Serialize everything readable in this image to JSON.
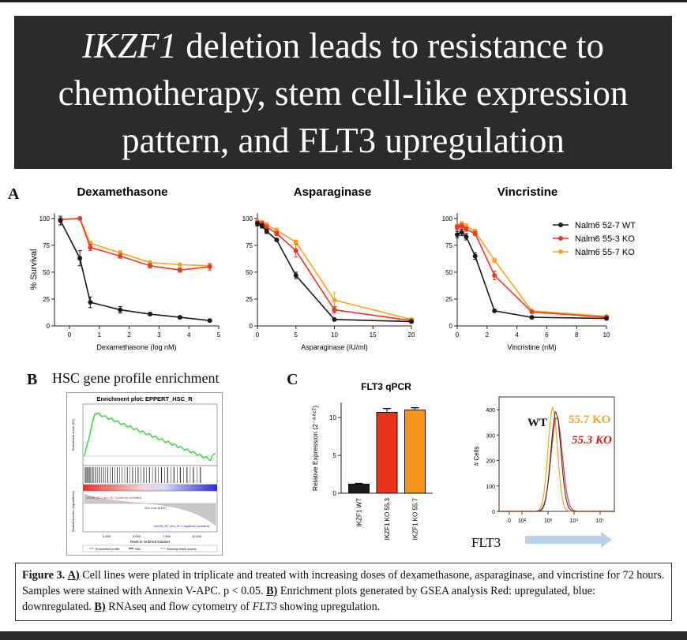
{
  "banner": {
    "italic": "IKZF1",
    "line1_rest": " deletion leads to resistance to",
    "line2": "chemotherapy, stem cell-like expression",
    "line3": "pattern, and FLT3 upregulation"
  },
  "panel_labels": {
    "a": "A",
    "b": "B",
    "c": "C"
  },
  "legend": [
    "Nalm6 52-7 WT",
    "Nalm6 55-3 KO",
    "Nalm6 55-7 KO"
  ],
  "colors": {
    "wt": "#1a1a1a",
    "ko553": "#e8392b",
    "ko557": "#f5a623",
    "bar_ko553": "#e8321e",
    "bar_ko557": "#f7941d",
    "banner_bg": "#2b2b2b"
  },
  "panelB": {
    "title": "HSC gene profile enrichment",
    "plot_title": "Enrichment plot: EPPERT_HSC_R",
    "xlabel": "Rank in Ordered Dataset",
    "ylabel_top": "Enrichment score (ES)",
    "ylabel_bottom": "Ranked list metric (Signal2Noise)",
    "pos_label": "NALM6_55-7_zero_55-7 (positively correlated)",
    "neg_label": "NALM6_WT_zero_57-2 (negatively correlated)",
    "zero_label": "Zero cross at 8327",
    "legend_items": [
      "Enrichment profile",
      "Hits",
      "Ranking metric scores"
    ],
    "x_ticks": [
      "2,500",
      "5,000",
      "7,500",
      "10,000"
    ]
  },
  "panelC_bar": {
    "title": "FLT3 qPCR",
    "ylabel": "Relative Expression (2⁻ᐞᐞᶜᵀ)",
    "y_ticks": [
      "0",
      "5",
      "10"
    ]
  },
  "panelC_flow": {
    "wt": "WT",
    "ko557": "55.7 KO",
    "ko553": "55.3 KO",
    "ylabel": "# Cells",
    "xlabel": "FLT3",
    "y_ticks": [
      "0",
      "100",
      "200",
      "300",
      "400"
    ],
    "x_ticks": [
      "0",
      "10²",
      "10³",
      "10⁴",
      "10⁵"
    ]
  },
  "caption": {
    "fig": "Figure 3.",
    "a_tag": "A)",
    "text1": " Cell lines were plated in triplicate and treated with increasing doses of dexamethasone, asparaginase, and vincristine for 72 hours. Samples were stained with Annexin V-APC. p < 0.05. ",
    "b_tag": "B)",
    "text2": " Enrichment plots generated by GSEA analysis Red: upregulated, blue: downregulated. ",
    "b2_tag": "B)",
    "text3": " RNAseq and flow cytometry of ",
    "gene": "FLT3",
    "text4": " showing upregulation."
  },
  "chart_data": [
    {
      "type": "line",
      "title": "Dexamethasone",
      "xlabel": "Dexamethasone (log nM)",
      "ylabel": "% Survival",
      "xlim": [
        -0.5,
        5
      ],
      "ylim": [
        0,
        105
      ],
      "x_ticks": [
        0,
        1,
        2,
        3,
        4,
        5
      ],
      "y_ticks": [
        0,
        25,
        50,
        75,
        100
      ],
      "series": [
        {
          "name": "Nalm6 52-7 WT",
          "x": [
            -0.3,
            0.35,
            0.7,
            1.7,
            2.7,
            3.7,
            4.7
          ],
          "y": [
            98,
            63,
            22,
            15,
            11,
            8,
            5
          ],
          "err": [
            4,
            7,
            5,
            3,
            1,
            1,
            1
          ]
        },
        {
          "name": "Nalm6 55-3 KO",
          "x": [
            -0.3,
            0.35,
            0.7,
            1.7,
            2.7,
            3.7,
            4.7
          ],
          "y": [
            99,
            100,
            73,
            65,
            56,
            52,
            55
          ],
          "err": [
            1,
            1,
            3,
            2,
            2,
            2,
            3
          ]
        },
        {
          "name": "Nalm6 55-7 KO",
          "x": [
            -0.3,
            0.35,
            0.7,
            1.7,
            2.7,
            3.7,
            4.7
          ],
          "y": [
            99,
            100,
            77,
            68,
            59,
            57,
            56
          ],
          "err": [
            1,
            1,
            2,
            2,
            1,
            1,
            2
          ]
        }
      ]
    },
    {
      "type": "line",
      "title": "Asparaginase",
      "xlabel": "Asparaginase (IU/ml)",
      "ylabel": "",
      "xlim": [
        0,
        20
      ],
      "ylim": [
        0,
        105
      ],
      "x_ticks": [
        0,
        5,
        10,
        15,
        20
      ],
      "y_ticks": [
        0,
        25,
        50,
        75,
        100
      ],
      "series": [
        {
          "name": "Nalm6 52-7 WT",
          "x": [
            0,
            0.6,
            1.2,
            2.5,
            5,
            10,
            20
          ],
          "y": [
            95,
            93,
            88,
            80,
            47,
            6,
            4
          ],
          "err": [
            2,
            2,
            2,
            1,
            3,
            1,
            1
          ]
        },
        {
          "name": "Nalm6 55-3 KO",
          "x": [
            0,
            0.6,
            1.2,
            2.5,
            5,
            10,
            20
          ],
          "y": [
            96,
            95,
            92,
            86,
            70,
            15,
            5
          ],
          "err": [
            2,
            2,
            2,
            2,
            6,
            3,
            1
          ]
        },
        {
          "name": "Nalm6 55-7 KO",
          "x": [
            0,
            0.6,
            1.2,
            2.5,
            5,
            10,
            20
          ],
          "y": [
            97,
            96,
            94,
            89,
            78,
            24,
            6
          ],
          "err": [
            2,
            2,
            2,
            2,
            2,
            7,
            1
          ]
        }
      ]
    },
    {
      "type": "line",
      "title": "Vincristine",
      "xlabel": "Vincristine (nM)",
      "ylabel": "",
      "xlim": [
        0,
        10
      ],
      "ylim": [
        0,
        105
      ],
      "x_ticks": [
        0,
        2,
        4,
        6,
        8,
        10
      ],
      "y_ticks": [
        0,
        25,
        50,
        75,
        100
      ],
      "series": [
        {
          "name": "Nalm6 52-7 WT",
          "x": [
            0,
            0.3,
            0.6,
            1.2,
            2.5,
            5,
            10
          ],
          "y": [
            85,
            87,
            83,
            65,
            14,
            8,
            7
          ],
          "err": [
            3,
            3,
            3,
            3,
            1,
            1,
            1
          ]
        },
        {
          "name": "Nalm6 55-3 KO",
          "x": [
            0,
            0.3,
            0.6,
            1.2,
            2.5,
            5,
            10
          ],
          "y": [
            92,
            93,
            90,
            86,
            47,
            13,
            8
          ],
          "err": [
            2,
            2,
            2,
            2,
            4,
            1,
            1
          ]
        },
        {
          "name": "Nalm6 55-7 KO",
          "x": [
            0,
            0.3,
            0.6,
            1.2,
            2.5,
            5,
            10
          ],
          "y": [
            93,
            95,
            93,
            88,
            61,
            14,
            9
          ],
          "err": [
            2,
            2,
            2,
            2,
            2,
            1,
            1
          ]
        }
      ]
    },
    {
      "type": "bar",
      "title": "FLT3 qPCR",
      "categories": [
        "IKZF1 WT",
        "IKZF1 KO 55.3",
        "IKZF1 KO 55.7"
      ],
      "values": [
        1.2,
        10.7,
        11.0
      ],
      "err": [
        0.1,
        0.5,
        0.3
      ],
      "ylim": [
        0,
        12
      ]
    }
  ]
}
